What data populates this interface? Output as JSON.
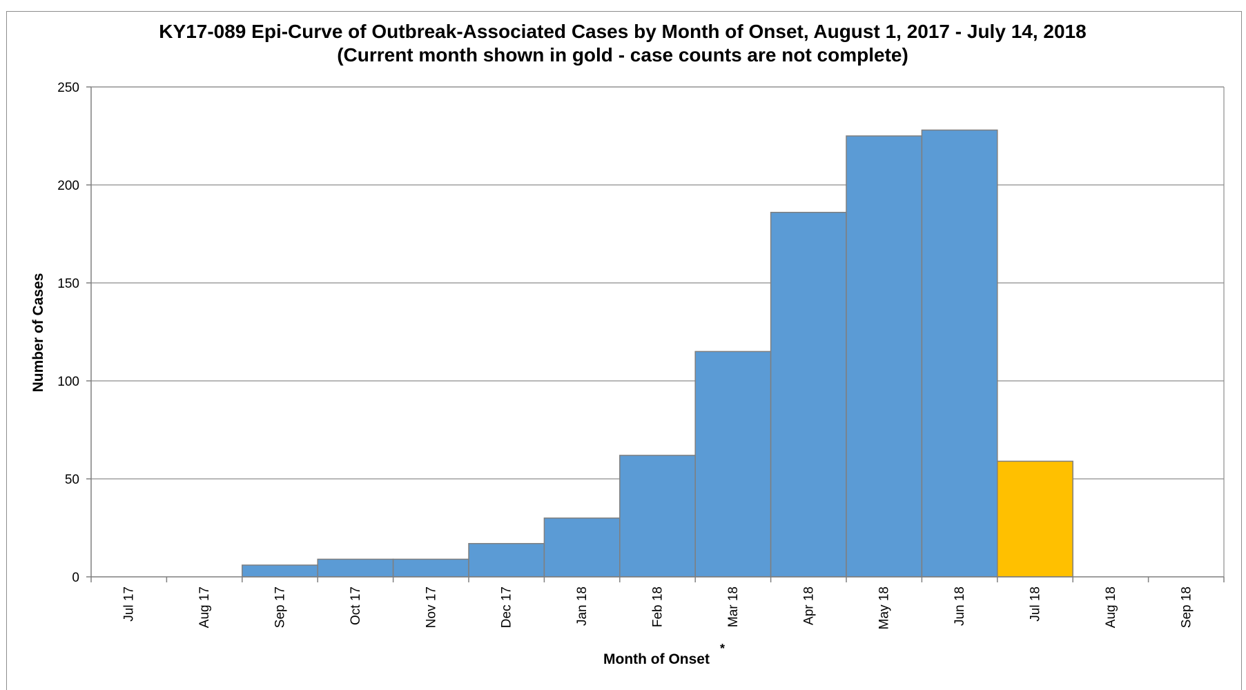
{
  "chart_data": {
    "type": "bar",
    "title": "KY17-089 Epi-Curve of Outbreak-Associated Cases by Month of Onset, August 1, 2017 - July 14, 2018",
    "subtitle": "(Current month shown in gold - case counts are not complete)",
    "xlabel": "Month of Onset",
    "xlabel_marker": "*",
    "ylabel": "Number of Cases",
    "categories": [
      "Jul 17",
      "Aug 17",
      "Sep 17",
      "Oct 17",
      "Nov 17",
      "Dec 17",
      "Jan 18",
      "Feb 18",
      "Mar 18",
      "Apr 18",
      "May 18",
      "Jun 18",
      "Jul 18",
      "Aug 18",
      "Sep 18"
    ],
    "values": [
      0,
      0,
      6,
      9,
      9,
      17,
      30,
      62,
      115,
      186,
      225,
      228,
      59,
      0,
      0
    ],
    "current_month": "Jul 18",
    "ylim": [
      0,
      250
    ],
    "yticks": [
      0,
      50,
      100,
      150,
      200,
      250
    ],
    "grid": true,
    "colors": {
      "bar": "#5b9bd5",
      "current": "#ffc000",
      "border": "#7f7f7f",
      "grid": "#8c8c8c"
    }
  }
}
